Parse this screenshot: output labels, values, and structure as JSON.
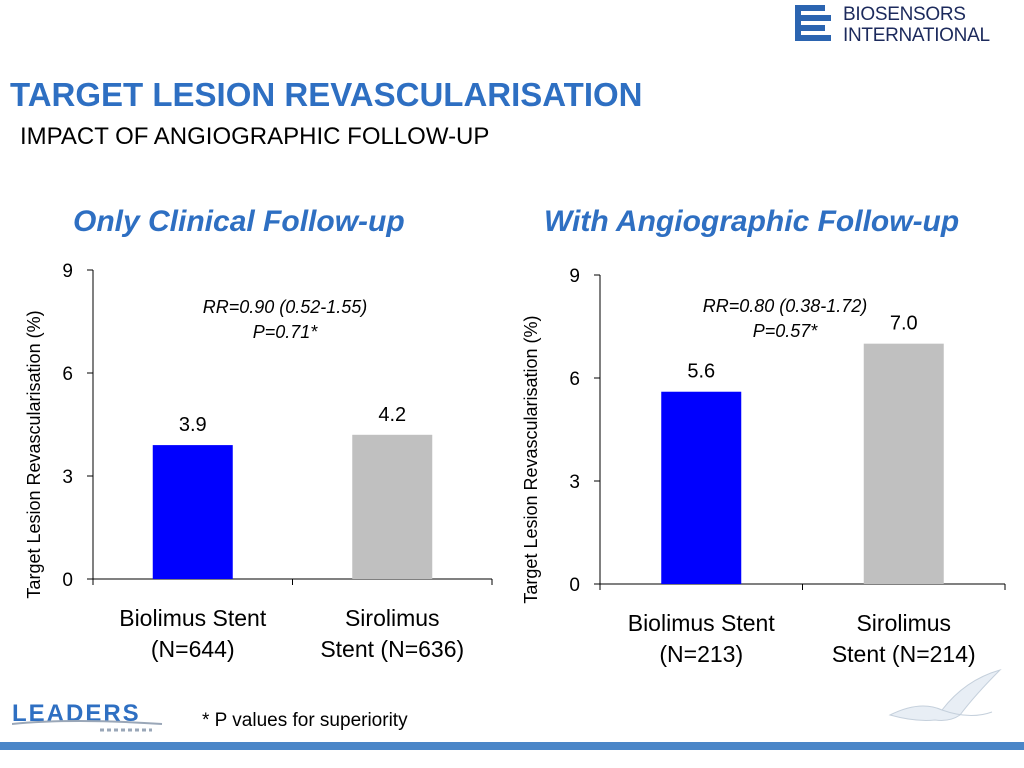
{
  "brand": {
    "line1": "BIOSENSORS",
    "line2": "INTERNATIONAL",
    "color": "#1c2a5c",
    "icon": "biosensors-logo-icon"
  },
  "title": "TARGET LESION REVASCULARISATION",
  "subtitle": "IMPACT OF ANGIOGRAPHIC FOLLOW-UP",
  "footnote": "* P values for superiority",
  "leaders_logo": "LEADERS",
  "chart_data": [
    {
      "type": "bar",
      "title": "Only Clinical Follow-up",
      "ylabel": "Target Lesion Revascularisation (%)",
      "ylim": [
        0,
        9
      ],
      "yticks": [
        0,
        3,
        6,
        9
      ],
      "categories": [
        [
          "Biolimus Stent",
          "(N=644)"
        ],
        [
          "Sirolimus",
          "Stent (N=636)"
        ]
      ],
      "values": [
        3.9,
        4.2
      ],
      "value_labels": [
        "3.9",
        "4.2"
      ],
      "colors": [
        "#0000ff",
        "#c0c0c0"
      ],
      "annotation": [
        "RR=0.90 (0.52-1.55)",
        "P=0.71*"
      ],
      "grid": false
    },
    {
      "type": "bar",
      "title": "With Angiographic Follow-up",
      "ylabel": "Target Lesion Revascularisation (%)",
      "ylim": [
        0,
        9
      ],
      "yticks": [
        0,
        3,
        6,
        9
      ],
      "categories": [
        [
          "Biolimus Stent",
          "(N=213)"
        ],
        [
          "Sirolimus",
          "Stent (N=214)"
        ]
      ],
      "values": [
        5.6,
        7.0
      ],
      "value_labels": [
        "5.6",
        "7.0"
      ],
      "colors": [
        "#0000ff",
        "#c0c0c0"
      ],
      "annotation": [
        "RR=0.80 (0.38-1.72)",
        "P=0.57*"
      ],
      "grid": false
    }
  ]
}
